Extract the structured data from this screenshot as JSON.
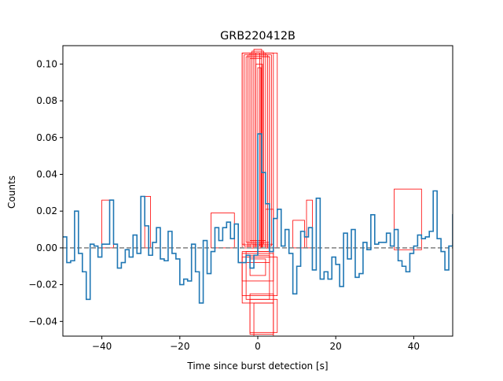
{
  "chart_data": {
    "type": "line",
    "title": "GRB220412B",
    "xlabel": "Time since burst detection [s]",
    "ylabel": "Counts",
    "xlim": [
      -50,
      50
    ],
    "ylim": [
      -0.048,
      0.11
    ],
    "grid": false,
    "x_ticks": [
      -40,
      -20,
      0,
      20,
      40
    ],
    "x_tick_labels": [
      "−40",
      "−20",
      "0",
      "20",
      "40"
    ],
    "y_ticks": [
      -0.04,
      -0.02,
      0.0,
      0.02,
      0.04,
      0.06,
      0.08,
      0.1
    ],
    "y_tick_labels": [
      "−0.04",
      "−0.02",
      "0.00",
      "0.02",
      "0.04",
      "0.06",
      "0.08",
      "0.10"
    ],
    "baseline": {
      "y": 0.0,
      "style": "dashed",
      "color": "#808080"
    },
    "series": [
      {
        "style": "step",
        "color": "#1f77b4",
        "bin_width": 1.0,
        "x_start": -50,
        "values": [
          0.006,
          -0.008,
          -0.007,
          0.02,
          -0.003,
          -0.013,
          -0.028,
          0.002,
          0.001,
          -0.005,
          0.002,
          0.002,
          0.026,
          0.002,
          -0.011,
          -0.008,
          -0.001,
          -0.005,
          0.007,
          -0.003,
          0.028,
          0.012,
          -0.004,
          0.003,
          0.011,
          -0.006,
          -0.007,
          0.009,
          -0.003,
          -0.006,
          -0.02,
          -0.017,
          -0.018,
          0.002,
          -0.013,
          -0.03,
          0.004,
          -0.014,
          -0.002,
          0.011,
          0.004,
          0.011,
          0.014,
          0.005,
          0.013,
          -0.008,
          -0.008,
          -0.004,
          -0.011,
          -0.004,
          0.062,
          0.041,
          0.024,
          -0.002,
          0.016,
          0.021,
          0.001,
          0.01,
          -0.003,
          -0.025,
          -0.01,
          0.009,
          0.006,
          0.011,
          -0.012,
          0.027,
          -0.017,
          -0.013,
          -0.017,
          -0.005,
          -0.009,
          -0.021,
          0.008,
          -0.006,
          0.01,
          -0.016,
          -0.014,
          0.003,
          -0.001,
          0.018,
          0.002,
          0.003,
          0.003,
          0.008,
          0.001,
          0.01,
          -0.007,
          -0.01,
          -0.013,
          -0.003,
          0.001,
          0.007,
          0.005,
          0.006,
          0.009,
          0.031,
          0.005,
          -0.002,
          -0.012,
          0.001,
          0.018
        ]
      }
    ],
    "annotations": [
      {
        "shape": "rectangle",
        "color": "#ff0000",
        "x0": -40,
        "x1": -37,
        "y0": 0.0,
        "y1": 0.026
      },
      {
        "shape": "rectangle",
        "color": "#ff0000",
        "x0": -29,
        "x1": -27.5,
        "y0": 0.0,
        "y1": 0.028
      },
      {
        "shape": "rectangle",
        "color": "#ff0000",
        "x0": -12,
        "x1": -6,
        "y0": 0.0,
        "y1": 0.019
      },
      {
        "shape": "rectangle",
        "color": "#ff0000",
        "x0": 9,
        "x1": 12,
        "y0": 0.0,
        "y1": 0.015
      },
      {
        "shape": "rectangle",
        "color": "#ff0000",
        "x0": 12.5,
        "x1": 14,
        "y0": 0.0,
        "y1": 0.026
      },
      {
        "shape": "rectangle",
        "color": "#ff0000",
        "x0": 35,
        "x1": 42,
        "y0": -0.001,
        "y1": 0.032
      },
      {
        "shape": "rectangle",
        "color": "#ff0000",
        "x0": -4,
        "x1": 5,
        "y0": 0.0,
        "y1": 0.106
      },
      {
        "shape": "rectangle",
        "color": "#ff0000",
        "x0": -4,
        "x1": 4,
        "y0": 0.002,
        "y1": 0.106
      },
      {
        "shape": "rectangle",
        "color": "#ff0000",
        "x0": -3.5,
        "x1": 3.5,
        "y0": 0.001,
        "y1": 0.105
      },
      {
        "shape": "rectangle",
        "color": "#ff0000",
        "x0": -3,
        "x1": 3,
        "y0": 0.003,
        "y1": 0.104
      },
      {
        "shape": "rectangle",
        "color": "#ff0000",
        "x0": -2.5,
        "x1": 2.5,
        "y0": 0.0,
        "y1": 0.105
      },
      {
        "shape": "rectangle",
        "color": "#ff0000",
        "x0": -2,
        "x1": 2,
        "y0": 0.004,
        "y1": 0.106
      },
      {
        "shape": "rectangle",
        "color": "#ff0000",
        "x0": -1.5,
        "x1": 1.5,
        "y0": 0.002,
        "y1": 0.107
      },
      {
        "shape": "rectangle",
        "color": "#ff0000",
        "x0": -1,
        "x1": 1,
        "y0": 0.0,
        "y1": 0.108
      },
      {
        "shape": "rectangle",
        "color": "#ff0000",
        "x0": -0.5,
        "x1": 0.5,
        "y0": 0.001,
        "y1": 0.106
      },
      {
        "shape": "rectangle",
        "color": "#ff0000",
        "x0": -1,
        "x1": 3,
        "y0": 0.0,
        "y1": 0.104
      },
      {
        "shape": "rectangle",
        "color": "#ff0000",
        "x0": -2,
        "x1": 1,
        "y0": 0.0,
        "y1": 0.103
      },
      {
        "shape": "rectangle",
        "color": "#ff0000",
        "x0": -0.5,
        "x1": 1.2,
        "y0": 0.0,
        "y1": 0.1
      },
      {
        "shape": "rectangle",
        "color": "#ff0000",
        "x0": 0.0,
        "x1": 0.8,
        "y0": 0.0,
        "y1": 0.098
      },
      {
        "shape": "rectangle",
        "color": "#ff0000",
        "x0": 2,
        "x1": 4,
        "y0": 0.0,
        "y1": 0.021
      },
      {
        "shape": "rectangle",
        "color": "#ff0000",
        "x0": -4,
        "x1": 4,
        "y0": -0.002,
        "y1": -0.03
      },
      {
        "shape": "rectangle",
        "color": "#ff0000",
        "x0": -3,
        "x1": 3,
        "y0": -0.004,
        "y1": -0.028
      },
      {
        "shape": "rectangle",
        "color": "#ff0000",
        "x0": -4,
        "x1": 5,
        "y0": -0.005,
        "y1": -0.026
      },
      {
        "shape": "rectangle",
        "color": "#ff0000",
        "x0": -4,
        "x1": 4,
        "y0": -0.003,
        "y1": -0.018
      },
      {
        "shape": "rectangle",
        "color": "#ff0000",
        "x0": -2,
        "x1": 2,
        "y0": -0.006,
        "y1": -0.015
      },
      {
        "shape": "rectangle",
        "color": "#ff0000",
        "x0": -3,
        "x1": 3,
        "y0": -0.002,
        "y1": -0.008
      },
      {
        "shape": "rectangle",
        "color": "#ff0000",
        "x0": -2,
        "x1": 4,
        "y0": -0.025,
        "y1": -0.047
      },
      {
        "shape": "rectangle",
        "color": "#ff0000",
        "x0": -2,
        "x1": 5,
        "y0": -0.028,
        "y1": -0.046
      },
      {
        "shape": "rectangle",
        "color": "#ff0000",
        "x0": -1,
        "x1": 4,
        "y0": -0.03,
        "y1": -0.048
      }
    ]
  }
}
